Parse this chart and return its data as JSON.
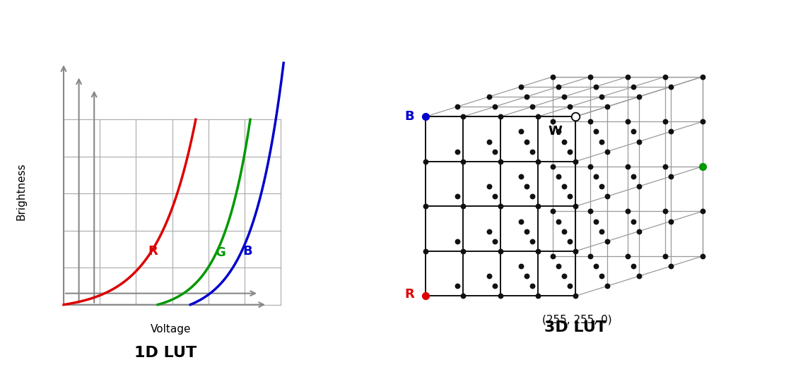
{
  "background_color": "#ffffff",
  "fig_width": 12.0,
  "fig_height": 5.23,
  "title_1d": "1D LUT",
  "title_3d": "3D LUT",
  "title_fontsize": 16,
  "brightness_label": "Brightness",
  "voltage_label": "Voltage",
  "curve_R_color": "#dd0000",
  "curve_G_color": "#009900",
  "curve_B_color": "#0000cc",
  "grid_color": "#b0b0b0",
  "axis_color": "#888888",
  "label_R": "R",
  "label_G": "G",
  "label_B": "B",
  "label_W": "W",
  "label_coords": "(255, 255, 0)",
  "cube_dot_color": "#111111",
  "cube_line_color": "#999999",
  "cube_front_line_color": "#111111",
  "cube_R_color": "#dd0000",
  "cube_G_color": "#009900",
  "cube_B_color": "#0000cc",
  "n_grid": 4
}
